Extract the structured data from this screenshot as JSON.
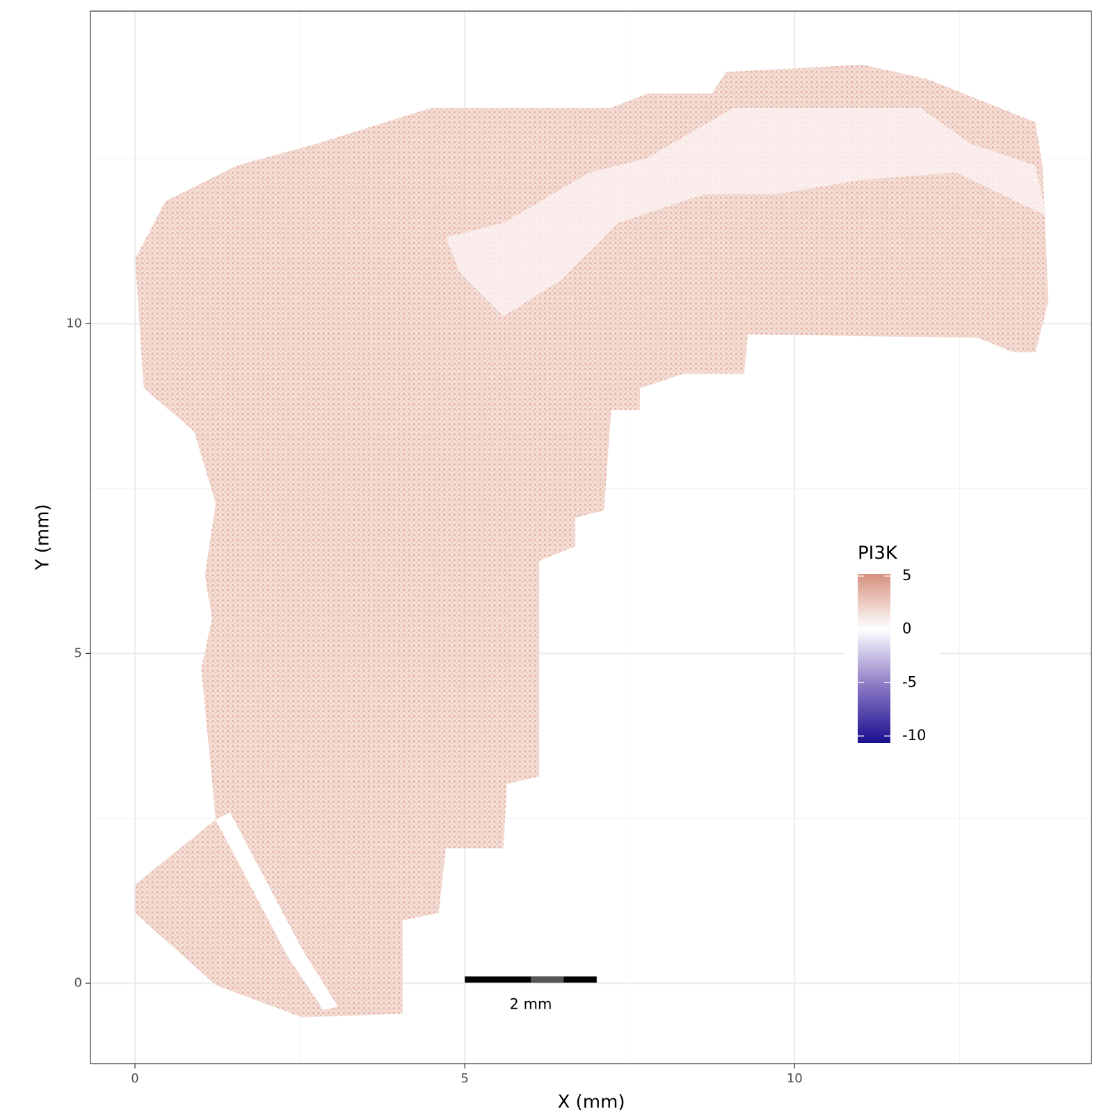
{
  "chart_data": {
    "type": "spatial",
    "xlabel": "X (mm)",
    "ylabel": "Y (mm)",
    "xlim": [
      -0.675,
      14.5
    ],
    "ylim": [
      -1.22,
      14.74
    ],
    "xticks": [
      0,
      5,
      10
    ],
    "yticks": [
      0,
      5,
      10
    ],
    "minor_xticks": [
      2.5,
      7.5,
      12.5
    ],
    "minor_yticks": [
      2.5,
      7.5,
      12.5
    ],
    "grid": true,
    "legend": {
      "title": "PI3K",
      "clim": [
        -10.65,
        5.2
      ],
      "ticks": [
        5,
        0,
        -5,
        -10
      ],
      "colors": {
        "low": "#1a0f8f",
        "mid": "#ffffff",
        "high": "#d6917e"
      }
    },
    "scale_bar": {
      "x": 5,
      "y": 0.05,
      "length": 2,
      "label": "2 mm"
    }
  }
}
